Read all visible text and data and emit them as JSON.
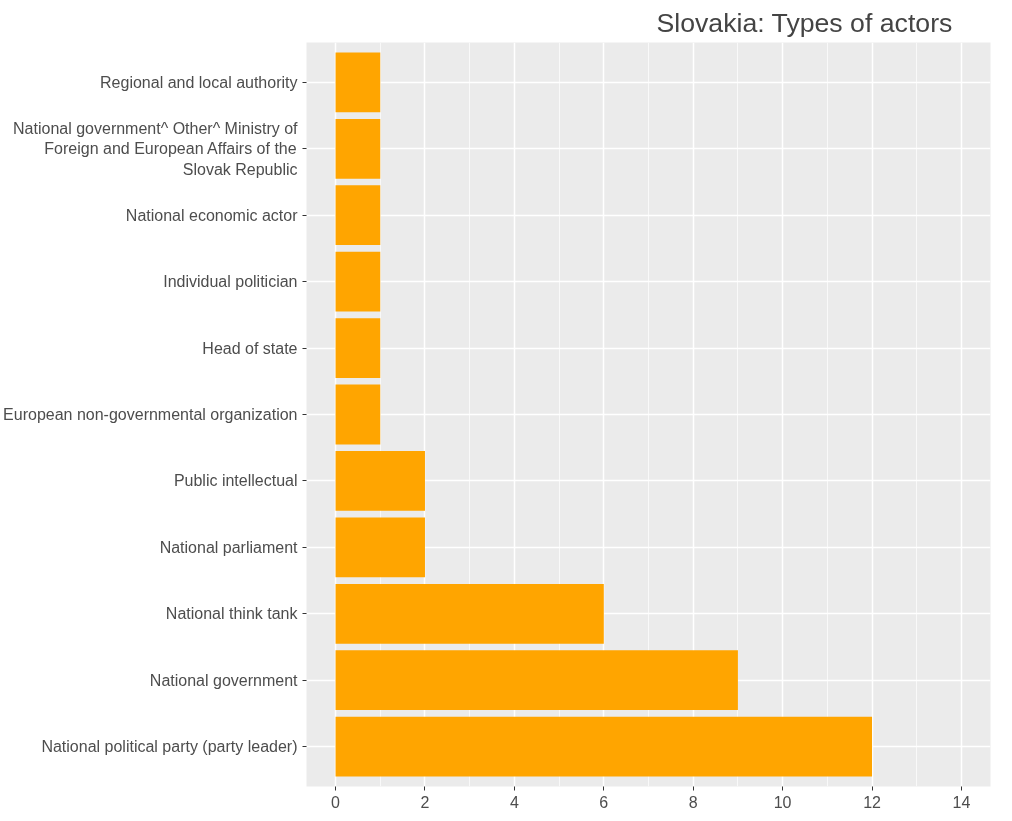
{
  "chart_data": {
    "type": "bar",
    "orientation": "horizontal",
    "title": "Slovakia: Types of actors",
    "categories": [
      "Regional and local authority",
      "National government^ Other^ Ministry of Foreign and European Affairs of the Slovak Republic",
      "National economic actor",
      "Individual politician",
      "Head of state",
      "European non-governmental organization",
      "Public intellectual",
      "National parliament",
      "National think tank",
      "National government",
      "National political party (party leader)"
    ],
    "values": [
      1,
      1,
      1,
      1,
      1,
      1,
      2,
      2,
      6,
      9,
      12
    ],
    "color": "#ffa500",
    "xlim": [
      -0.65,
      14.65
    ],
    "xticks": [
      0,
      2,
      4,
      6,
      8,
      10,
      12,
      14
    ],
    "grid": true
  }
}
